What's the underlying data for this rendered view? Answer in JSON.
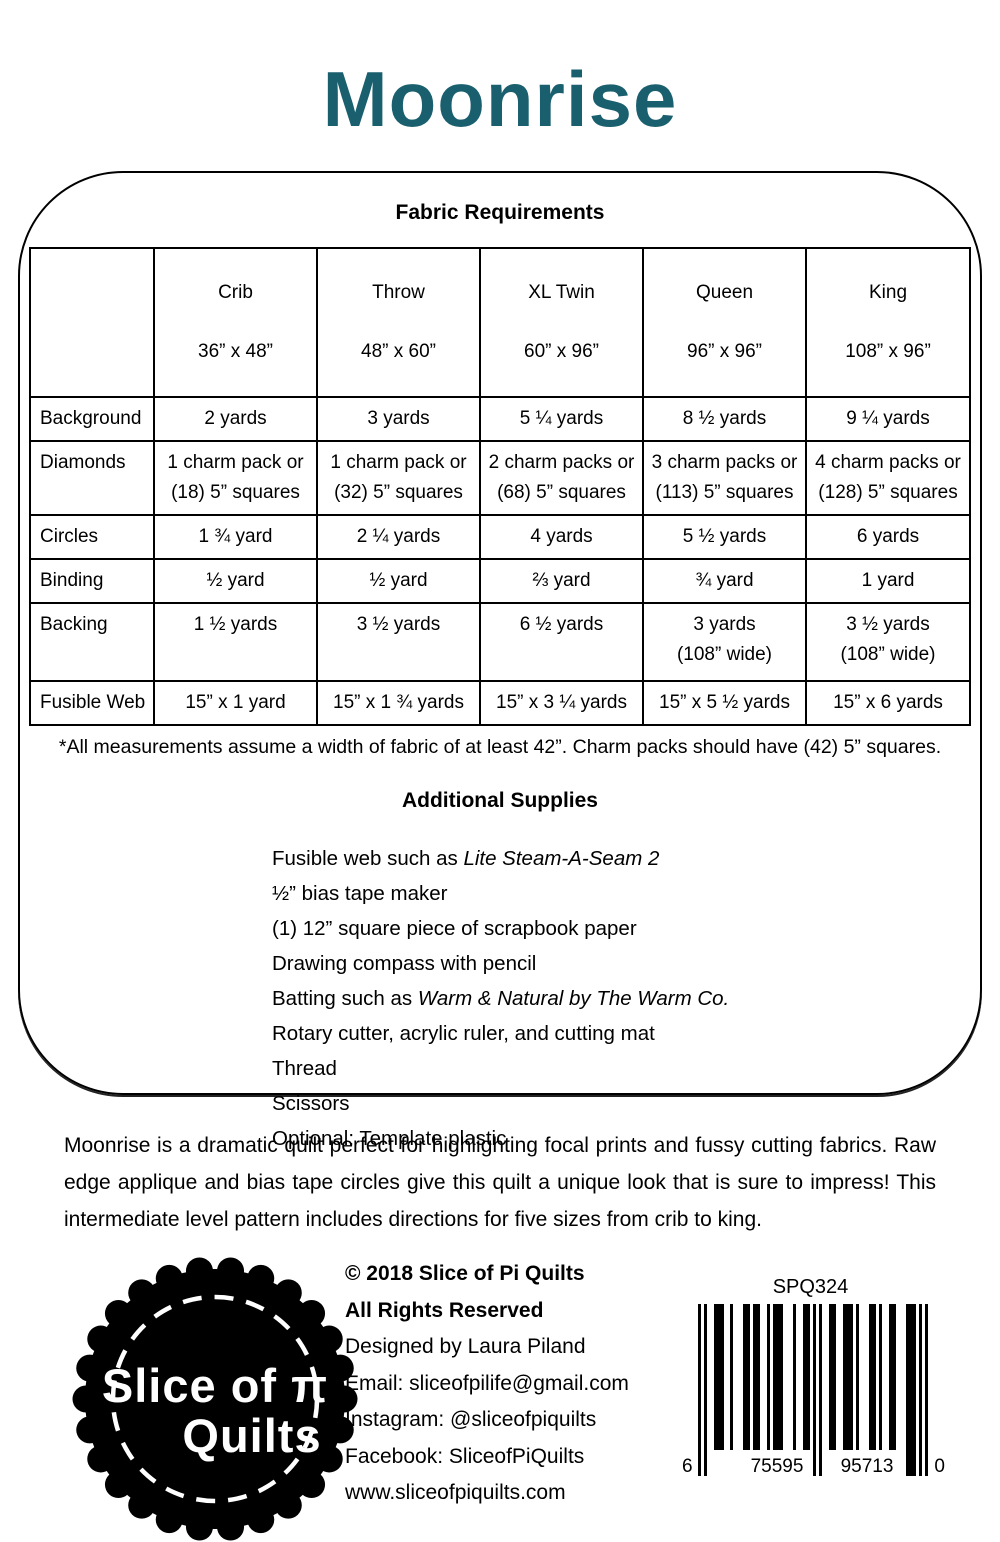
{
  "colors": {
    "title_teal": "#1a5f6e",
    "ink": "#000000"
  },
  "page": {
    "title": "Moonrise"
  },
  "fabric_requirements": {
    "heading": "Fabric Requirements",
    "columns": [
      {
        "name": "Crib",
        "size": "36” x 48”"
      },
      {
        "name": "Throw",
        "size": "48” x 60”"
      },
      {
        "name": "XL Twin",
        "size": "60” x 96”"
      },
      {
        "name": "Queen",
        "size": "96” x 96”"
      },
      {
        "name": "King",
        "size": "108” x 96”"
      }
    ],
    "rows": [
      {
        "label": "Background",
        "values": [
          "2 yards",
          "3 yards",
          "5 ¼ yards",
          "8 ½ yards",
          "9 ¼ yards"
        ]
      },
      {
        "label": "Diamonds",
        "values": [
          "1 charm pack or\n(18) 5” squares",
          "1 charm pack or\n(32) 5” squares",
          "2 charm packs or\n(68) 5” squares",
          "3 charm packs or\n(113) 5” squares",
          "4 charm packs or\n(128) 5” squares"
        ]
      },
      {
        "label": "Circles",
        "values": [
          "1 ¾ yard",
          "2 ¼ yards",
          "4 yards",
          "5 ½ yards",
          "6 yards"
        ]
      },
      {
        "label": "Binding",
        "values": [
          "½ yard",
          "½ yard",
          "⅔ yard",
          "¾ yard",
          "1 yard"
        ]
      },
      {
        "label": "Backing",
        "values": [
          "1 ½ yards",
          "3 ½ yards",
          "6 ½ yards",
          "3 yards\n(108” wide)",
          "3 ½ yards\n(108” wide)"
        ]
      },
      {
        "label": "Fusible Web",
        "values": [
          "15” x 1 yard",
          "15” x 1 ¾ yards",
          "15” x 3 ¼ yards",
          "15” x 5 ½ yards",
          "15” x 6 yards"
        ]
      }
    ],
    "footnote": "*All measurements assume a width of fabric of at least 42”. Charm packs should have (42) 5” squares."
  },
  "additional_supplies": {
    "heading": "Additional Supplies",
    "items": [
      {
        "text": "Fusible web such as ",
        "italic": "Lite Steam-A-Seam 2"
      },
      {
        "text": "½” bias tape maker",
        "italic": ""
      },
      {
        "text": "(1) 12” square piece of scrapbook paper",
        "italic": ""
      },
      {
        "text": "Drawing compass with pencil",
        "italic": ""
      },
      {
        "text": "Batting such as ",
        "italic": "Warm & Natural by The Warm Co."
      },
      {
        "text": "Rotary cutter, acrylic ruler, and cutting mat",
        "italic": ""
      },
      {
        "text": "Thread",
        "italic": ""
      },
      {
        "text": "Scissors",
        "italic": ""
      },
      {
        "text": "Optional: Template plastic",
        "italic": ""
      }
    ]
  },
  "description": "Moonrise is a dramatic quilt perfect for highlighting focal prints and fussy cutting fabrics. Raw edge applique and bias tape circles give this quilt a unique look that is sure to impress! This intermediate level pattern includes directions for five sizes from crib to king.",
  "footer": {
    "logo": {
      "line1": "Slice of π",
      "line2": "Quilts"
    },
    "credits": [
      "© 2018 Slice of Pi Quilts",
      "All Rights Reserved",
      "Designed by Laura Piland",
      "Email: sliceofpilife@gmail.com",
      "Instagram: @sliceofpiquilts",
      "Facebook: SliceofPiQuilts",
      "www.sliceofpiquilts.com"
    ],
    "barcode": {
      "sku": "SPQ324",
      "left_digit": "6",
      "group1": "75595",
      "group2": "95713",
      "right_digit": "0"
    }
  }
}
